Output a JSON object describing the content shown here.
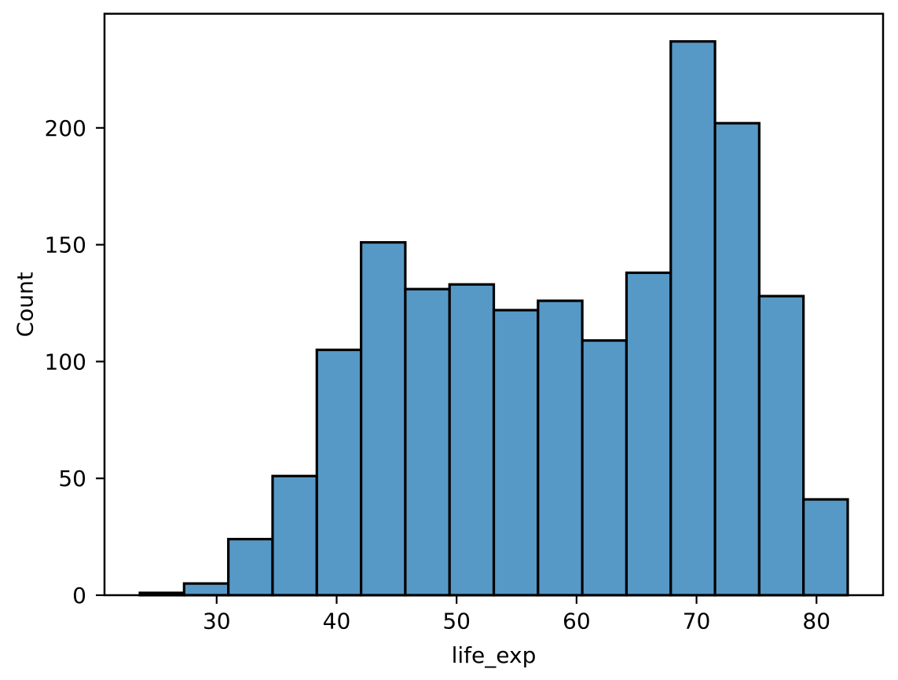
{
  "figure": {
    "background": "#ffffff",
    "text_color": "#000000"
  },
  "chart_data": {
    "type": "bar",
    "subtype": "histogram",
    "title": "",
    "xlabel": "life_exp",
    "ylabel": "Count",
    "bin_edges": [
      23.599,
      27.287,
      30.974,
      34.662,
      38.35,
      42.038,
      45.725,
      49.413,
      53.101,
      56.789,
      60.476,
      64.164,
      67.852,
      71.54,
      75.227,
      78.915,
      82.603
    ],
    "counts": [
      1,
      5,
      24,
      51,
      105,
      151,
      131,
      133,
      122,
      126,
      109,
      138,
      237,
      202,
      128,
      41
    ],
    "xticks": [
      30,
      40,
      50,
      60,
      70,
      80
    ],
    "yticks": [
      0,
      50,
      100,
      150,
      200
    ],
    "xlim": [
      20.65,
      85.55
    ],
    "ylim": [
      0,
      248.85
    ],
    "grid": false,
    "legend": null,
    "bar_fill": "#5799c6",
    "bar_edge": "#000000",
    "axis_color": "#000000"
  }
}
